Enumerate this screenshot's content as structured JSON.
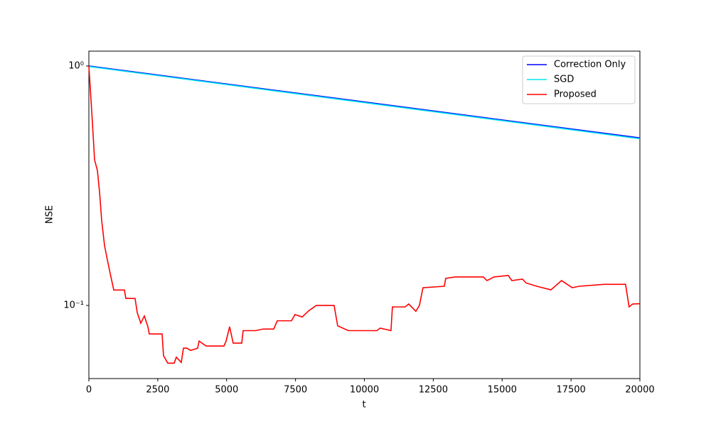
{
  "chart_data": {
    "type": "line",
    "xlabel": "t",
    "ylabel": "NSE",
    "log_y": true,
    "legend": "upper right",
    "xlim": [
      0,
      20000
    ],
    "ylim": [
      0.0495,
      1.154
    ],
    "xticks": [
      0,
      2500,
      5000,
      7500,
      10000,
      12500,
      15000,
      17500,
      20000
    ],
    "yticks": [
      {
        "value": 0.1,
        "label": "10⁻¹"
      },
      {
        "value": 1,
        "label": "10⁰"
      }
    ],
    "series": [
      {
        "name": "Correction Only",
        "color": "#0000ff",
        "x": [
          0,
          20000
        ],
        "values": [
          1.0,
          0.501
        ]
      },
      {
        "name": "SGD",
        "color": "#00e5ee",
        "x": [
          0,
          20000
        ],
        "values": [
          0.995,
          0.497
        ]
      },
      {
        "name": "Proposed",
        "color": "#ff0000",
        "x": [
          0,
          77,
          155,
          206,
          310,
          387,
          464,
          568,
          671,
          774,
          903,
          1290,
          1342,
          1677,
          1755,
          1884,
          2013,
          2142,
          2193,
          2658,
          2709,
          2864,
          3096,
          3174,
          3354,
          3432,
          3561,
          3690,
          3948,
          4000,
          4258,
          4903,
          4980,
          5109,
          5238,
          5548,
          5600,
          6064,
          6322,
          6709,
          6838,
          7354,
          7482,
          7740,
          7998,
          8256,
          8901,
          9030,
          9417,
          10449,
          10578,
          10965,
          11017,
          11481,
          11610,
          11868,
          11997,
          12126,
          12900,
          12952,
          13287,
          14319,
          14448,
          14706,
          15222,
          15351,
          15738,
          15867,
          16254,
          16770,
          17157,
          17544,
          17802,
          18705,
          19479,
          19608,
          19737,
          20000
        ],
        "values": [
          1.0,
          0.725,
          0.515,
          0.406,
          0.366,
          0.298,
          0.227,
          0.178,
          0.155,
          0.136,
          0.116,
          0.116,
          0.107,
          0.107,
          0.0934,
          0.0843,
          0.0904,
          0.0815,
          0.076,
          0.076,
          0.0617,
          0.0574,
          0.0574,
          0.0608,
          0.0578,
          0.0663,
          0.0663,
          0.0649,
          0.0663,
          0.071,
          0.0677,
          0.0677,
          0.071,
          0.0815,
          0.0696,
          0.0696,
          0.0785,
          0.0785,
          0.0797,
          0.0797,
          0.0863,
          0.0863,
          0.0916,
          0.0895,
          0.0954,
          0.1,
          0.1,
          0.0822,
          0.0785,
          0.0785,
          0.0804,
          0.0785,
          0.0986,
          0.0986,
          0.1014,
          0.0945,
          0.1,
          0.1186,
          0.1203,
          0.1297,
          0.1315,
          0.1315,
          0.127,
          0.1315,
          0.1334,
          0.127,
          0.1288,
          0.1242,
          0.1203,
          0.1162,
          0.127,
          0.1186,
          0.1203,
          0.1225,
          0.1225,
          0.0986,
          0.1014,
          0.1017
        ]
      }
    ]
  }
}
